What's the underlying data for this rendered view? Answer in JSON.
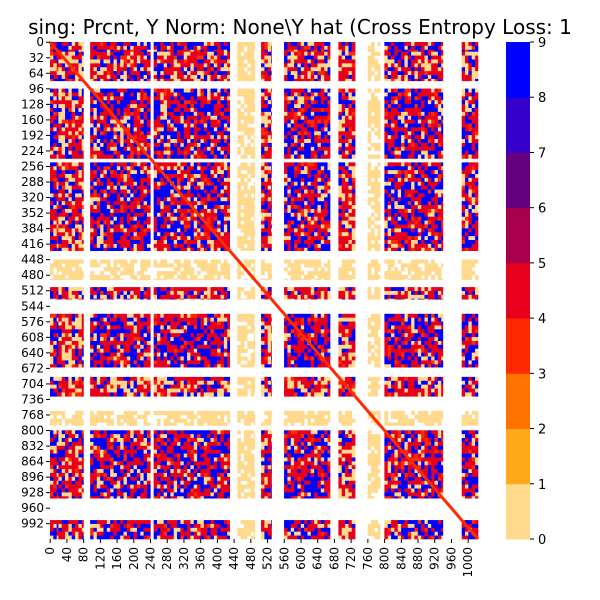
{
  "chart_data": {
    "type": "heatmap",
    "title": "sing: Prcnt, Y Norm: None\\Y hat (Cross Entropy Loss: 1",
    "xlabel": "",
    "ylabel": "",
    "n": 1024,
    "x_ticks": [
      "0",
      "40",
      "80",
      "120",
      "160",
      "200",
      "240",
      "280",
      "320",
      "360",
      "400",
      "440",
      "480",
      "520",
      "560",
      "600",
      "640",
      "680",
      "720",
      "760",
      "800",
      "840",
      "880",
      "920",
      "960",
      "1000"
    ],
    "y_ticks": [
      "0",
      "32",
      "64",
      "96",
      "128",
      "160",
      "192",
      "224",
      "256",
      "288",
      "320",
      "352",
      "384",
      "416",
      "448",
      "480",
      "512",
      "544",
      "576",
      "608",
      "640",
      "672",
      "704",
      "736",
      "768",
      "800",
      "832",
      "864",
      "896",
      "928",
      "960",
      "992"
    ],
    "colorbar": {
      "range": [
        0,
        9
      ],
      "ticks": [
        "0",
        "1",
        "2",
        "3",
        "4",
        "5",
        "6",
        "7",
        "8",
        "9"
      ],
      "colors": [
        "#ffffff",
        "#ffd98c",
        "#ffaa1a",
        "#ff7300",
        "#ff2a00",
        "#e6001c",
        "#a8004d",
        "#66007f",
        "#3500cc",
        "#0000ff"
      ]
    },
    "band_groups": [
      {
        "start": 0,
        "end": 20,
        "weight": 0.85
      },
      {
        "start": 20,
        "end": 80,
        "weight": 0.65
      },
      {
        "start": 96,
        "end": 240,
        "weight": 0.95
      },
      {
        "start": 248,
        "end": 430,
        "weight": 0.9
      },
      {
        "start": 448,
        "end": 490,
        "weight": 0.15
      },
      {
        "start": 505,
        "end": 530,
        "weight": 0.55
      },
      {
        "start": 560,
        "end": 670,
        "weight": 0.9
      },
      {
        "start": 690,
        "end": 730,
        "weight": 0.75
      },
      {
        "start": 760,
        "end": 790,
        "weight": 0.1
      },
      {
        "start": 800,
        "end": 940,
        "weight": 0.85
      },
      {
        "start": 985,
        "end": 1024,
        "weight": 0.8
      }
    ],
    "diagonal_value": 4
  }
}
